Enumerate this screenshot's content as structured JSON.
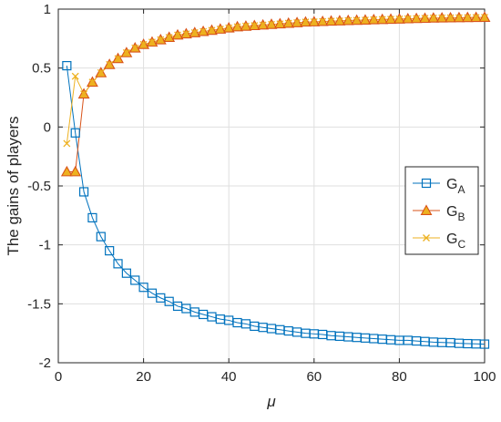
{
  "chart_data": {
    "type": "line",
    "title": "",
    "xlabel": "μ",
    "ylabel": "The gains of players",
    "xlim": [
      0,
      100
    ],
    "ylim": [
      -2,
      1
    ],
    "xticks": [
      0,
      20,
      40,
      60,
      80,
      100
    ],
    "yticks": [
      1,
      0.5,
      0,
      -0.5,
      -1,
      -1.5,
      -2
    ],
    "xtick_labels": [
      "0",
      "20",
      "40",
      "60",
      "80",
      "100"
    ],
    "ytick_labels": [
      "1",
      "0.5",
      "0",
      "-0.5",
      "-1",
      "-1.5",
      "-2"
    ],
    "grid": true,
    "legend_position": "right",
    "x": [
      2,
      4,
      6,
      8,
      10,
      12,
      14,
      16,
      18,
      20,
      22,
      24,
      26,
      28,
      30,
      32,
      34,
      36,
      38,
      40,
      42,
      44,
      46,
      48,
      50,
      52,
      54,
      56,
      58,
      60,
      62,
      64,
      66,
      68,
      70,
      72,
      74,
      76,
      78,
      80,
      82,
      84,
      86,
      88,
      90,
      92,
      94,
      96,
      98,
      100
    ],
    "series": [
      {
        "name": "G_A",
        "label_main": "G",
        "label_sub": "A",
        "color": "#0072BD",
        "marker": "square",
        "values": [
          0.52,
          -0.05,
          -0.55,
          -0.77,
          -0.93,
          -1.05,
          -1.16,
          -1.24,
          -1.3,
          -1.36,
          -1.41,
          -1.45,
          -1.48,
          -1.52,
          -1.54,
          -1.57,
          -1.59,
          -1.61,
          -1.63,
          -1.64,
          -1.66,
          -1.67,
          -1.69,
          -1.7,
          -1.71,
          -1.72,
          -1.73,
          -1.74,
          -1.75,
          -1.755,
          -1.76,
          -1.77,
          -1.775,
          -1.78,
          -1.785,
          -1.79,
          -1.795,
          -1.8,
          -1.805,
          -1.81,
          -1.81,
          -1.815,
          -1.82,
          -1.825,
          -1.828,
          -1.83,
          -1.835,
          -1.838,
          -1.84,
          -1.842
        ]
      },
      {
        "name": "G_B",
        "label_main": "G",
        "label_sub": "B",
        "color": "#D95319",
        "fill": "#EDB120",
        "marker": "triangle",
        "values": [
          -0.38,
          -0.38,
          0.28,
          0.38,
          0.46,
          0.53,
          0.58,
          0.63,
          0.67,
          0.7,
          0.72,
          0.74,
          0.76,
          0.78,
          0.79,
          0.8,
          0.81,
          0.82,
          0.83,
          0.84,
          0.85,
          0.855,
          0.86,
          0.865,
          0.87,
          0.875,
          0.88,
          0.885,
          0.89,
          0.892,
          0.895,
          0.898,
          0.9,
          0.903,
          0.905,
          0.907,
          0.91,
          0.912,
          0.914,
          0.916,
          0.918,
          0.92,
          0.922,
          0.924,
          0.925,
          0.926,
          0.927,
          0.928,
          0.929,
          0.93
        ]
      },
      {
        "name": "G_C",
        "label_main": "G",
        "label_sub": "C",
        "color": "#EDB120",
        "marker": "x",
        "values": [
          -0.14,
          0.43,
          0.28,
          0.38,
          0.46,
          0.53,
          0.58,
          0.63,
          0.67,
          0.7,
          0.72,
          0.74,
          0.76,
          0.78,
          0.79,
          0.8,
          0.81,
          0.82,
          0.83,
          0.84,
          0.85,
          0.855,
          0.86,
          0.865,
          0.87,
          0.875,
          0.88,
          0.885,
          0.89,
          0.892,
          0.895,
          0.898,
          0.9,
          0.903,
          0.905,
          0.907,
          0.91,
          0.912,
          0.914,
          0.916,
          0.918,
          0.92,
          0.922,
          0.924,
          0.925,
          0.926,
          0.927,
          0.928,
          0.929,
          0.93
        ]
      }
    ]
  }
}
